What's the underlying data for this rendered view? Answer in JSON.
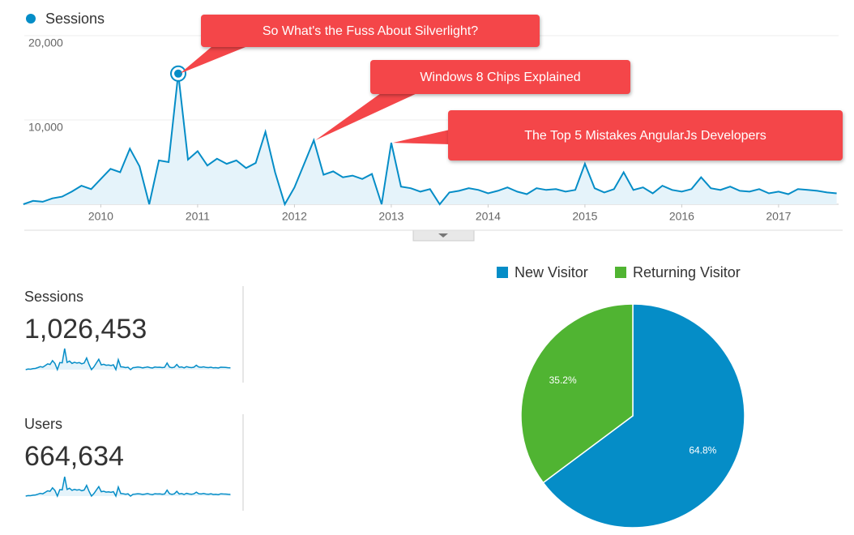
{
  "chart_data": [
    {
      "type": "area",
      "series": [
        {
          "name": "Sessions",
          "color": "#058dc7",
          "values": [
            0,
            400,
            300,
            700,
            900,
            1500,
            2200,
            1800,
            3000,
            4200,
            3800,
            6600,
            4500,
            0,
            5200,
            5000,
            15500,
            5300,
            6300,
            4600,
            5400,
            4800,
            5200,
            4300,
            4900,
            8600,
            3800,
            0,
            2000,
            4800,
            7600,
            3500,
            3900,
            3200,
            3400,
            3000,
            3600,
            0,
            7300,
            2100,
            1900,
            1500,
            1800,
            0,
            1400,
            1600,
            1900,
            1700,
            1300,
            1600,
            2000,
            1500,
            1200,
            1900,
            1700,
            1800,
            1500,
            1700,
            4800,
            1900,
            1400,
            1800,
            3800,
            1700,
            2000,
            1300,
            2200,
            1700,
            1500,
            1800,
            3200,
            1900,
            1700,
            2100,
            1600,
            1500,
            1800,
            1300,
            1500,
            1200,
            1800,
            1700,
            1600,
            1400,
            1300
          ]
        }
      ],
      "x": [
        2009.2,
        2009.3,
        2009.4,
        2009.5,
        2009.6,
        2009.7,
        2009.8,
        2009.9,
        2010.0,
        2010.1,
        2010.2,
        2010.3,
        2010.4,
        2010.5,
        2010.6,
        2010.7,
        2010.8,
        2010.9,
        2011.0,
        2011.1,
        2011.2,
        2011.3,
        2011.4,
        2011.5,
        2011.6,
        2011.7,
        2011.8,
        2011.9,
        2012.0,
        2012.1,
        2012.2,
        2012.3,
        2012.4,
        2012.5,
        2012.6,
        2012.7,
        2012.8,
        2012.9,
        2013.0,
        2013.1,
        2013.2,
        2013.3,
        2013.4,
        2013.5,
        2013.6,
        2013.7,
        2013.8,
        2013.9,
        2014.0,
        2014.1,
        2014.2,
        2014.3,
        2014.4,
        2014.5,
        2014.6,
        2014.7,
        2014.8,
        2014.9,
        2015.0,
        2015.1,
        2015.2,
        2015.3,
        2015.4,
        2015.5,
        2015.6,
        2015.7,
        2015.8,
        2015.9,
        2016.0,
        2016.1,
        2016.2,
        2016.3,
        2016.4,
        2016.5,
        2016.6,
        2016.7,
        2016.8,
        2016.9,
        2017.0,
        2017.1,
        2017.2,
        2017.3,
        2017.4,
        2017.5,
        2017.6
      ],
      "xlim": [
        2009.21,
        2017.62
      ],
      "xticks": [
        2010,
        2011,
        2012,
        2013,
        2014,
        2015,
        2016,
        2017
      ],
      "ylim": [
        0,
        20000
      ],
      "yticks": [
        {
          "value": 10000,
          "label": "10,000"
        },
        {
          "value": 20000,
          "label": "20,000"
        }
      ],
      "grid": true,
      "annotations": [
        "So What's the Fuss About Silverlight?",
        "Windows 8 Chips Explained",
        "The Top 5 Mistakes AngularJs Developers"
      ]
    },
    {
      "type": "pie",
      "categories": [
        "New Visitor",
        "Returning Visitor"
      ],
      "values": [
        64.8,
        35.2
      ],
      "value_labels": [
        "64.8%",
        "35.2%"
      ],
      "colors": [
        "#058dc7",
        "#50b432"
      ]
    }
  ],
  "metrics": [
    {
      "label": "Sessions",
      "value": "1,026,453"
    },
    {
      "label": "Users",
      "value": "664,634"
    }
  ]
}
